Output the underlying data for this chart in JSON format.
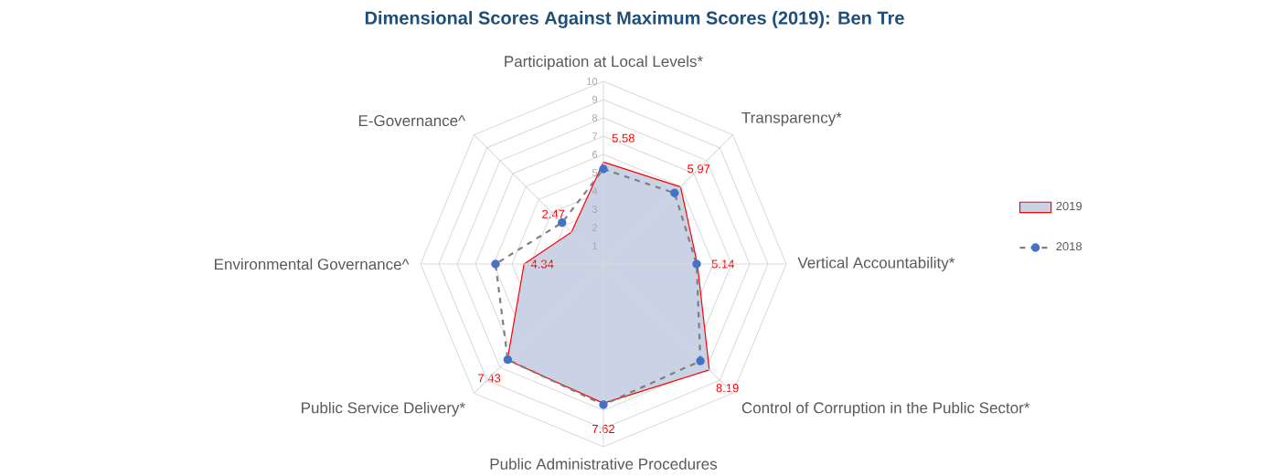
{
  "chart_data": {
    "type": "radar",
    "title": "Dimensional Scores Against Maximum Scores (2019): Ben Tre",
    "categories": [
      "Participation at Local Levels*",
      "Transparency*",
      "Vertical Accountability*",
      "Control of Corruption in the Public Sector*",
      "Public Administrative Procedures",
      "Public Service Delivery*",
      "Environmental Governance^",
      "E-Governance^"
    ],
    "series": [
      {
        "name": "2019",
        "color": "#ff0000",
        "values": [
          5.58,
          5.97,
          5.14,
          8.19,
          7.62,
          7.43,
          4.34,
          2.47
        ],
        "value_labels": [
          "5.58",
          "5.97",
          "5.14",
          "8.19",
          "7.62",
          "7.43",
          "4.34",
          "2.47"
        ]
      },
      {
        "name": "2018",
        "color": "#7f7f7f",
        "line_style": "dashed",
        "marker": "circle",
        "values": [
          5.2,
          5.5,
          5.1,
          7.5,
          7.7,
          7.4,
          5.9,
          3.2
        ]
      }
    ],
    "ylim": [
      0,
      10
    ],
    "yticks": [
      1,
      2,
      3,
      4,
      5,
      6,
      7,
      8,
      9,
      10
    ],
    "grid": true,
    "legend": "right"
  }
}
